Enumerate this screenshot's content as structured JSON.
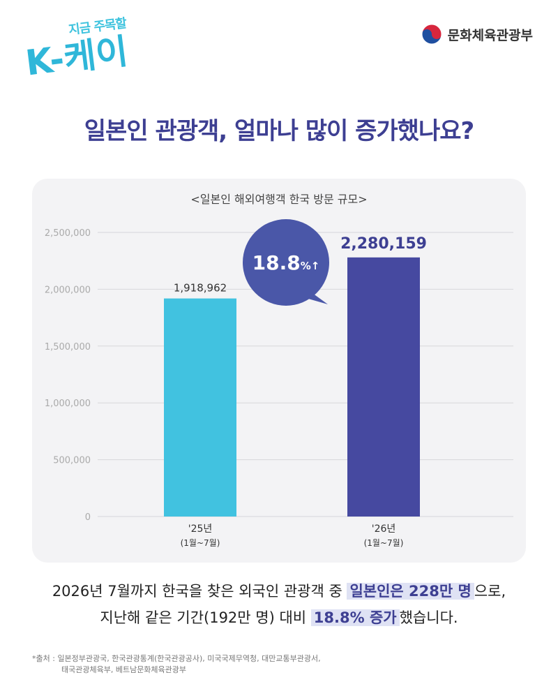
{
  "logo": {
    "sub": "지금 주목할",
    "main": "K-케이"
  },
  "ministry": {
    "name": "문화체육관광부",
    "emblem_colors": [
      "#d7263d",
      "#1f4fa0"
    ]
  },
  "headline": "일본인 관광객, 얼마나 많이 증가했나요?",
  "colors": {
    "accent": "#3d3f92",
    "bar_2025": "#41c2e0",
    "bar_2026": "#4649a0"
  },
  "chart_data": {
    "type": "bar",
    "title": "<일본인 해외여행객 한국 방문 규모>",
    "categories": [
      "'25년",
      "'26년"
    ],
    "category_sublabels": [
      "(1월~7월)",
      "(1월~7월)"
    ],
    "values": [
      1918962,
      2280159
    ],
    "value_labels": [
      "1,918,962",
      "2,280,159"
    ],
    "ylim": [
      0,
      2500000
    ],
    "yticks": [
      0,
      500000,
      1000000,
      1500000,
      2000000,
      2500000
    ],
    "ytick_labels": [
      "0",
      "500,000",
      "1,000,000",
      "1,500,000",
      "2,000,000",
      "2,500,000"
    ],
    "grid": true,
    "annotation": {
      "value": "18.8",
      "unit": "%↑"
    }
  },
  "summary": {
    "line1_pre": "2026년 7월까지 한국을 찾은 외국인 관광객 중 ",
    "line1_hl": "일본인은 228만 명",
    "line1_post": "으로,",
    "line2_pre": "지난해 같은 기간(192만 명) 대비 ",
    "line2_hl": "18.8% 증가",
    "line2_post": "했습니다."
  },
  "source": {
    "line1": "*출처 : 일본정부관광국, 한국관광통계(한국관광공사), 미국국제무역청, 대만교통부관광서,",
    "line2": "태국관광체육부, 베트남문화체육관광부"
  }
}
